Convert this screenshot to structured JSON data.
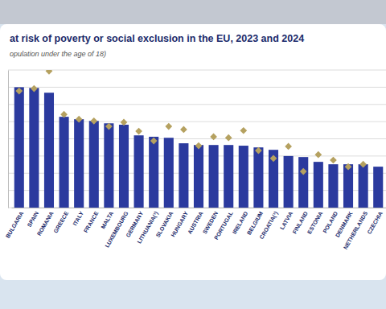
{
  "chart_data": {
    "type": "bar",
    "title": "at risk of poverty or social exclusion in the EU, 2023 and 2024",
    "subtitle": "opulation under the age of 18)",
    "categories": [
      "BULGARIA",
      "SPAIN",
      "ROMANIA",
      "GREECE",
      "ITALY",
      "FRANCE",
      "MALTA",
      "LUXEMBOURG",
      "GERMANY",
      "LITHUANIA(¹)",
      "SLOVAKIA",
      "HUNGARY",
      "AUSTRIA",
      "SWEDEN",
      "PORTUGAL",
      "IRELAND",
      "BELGIUM",
      "CROATIA(¹)",
      "LATVIA",
      "FINLAND",
      "ESTONIA",
      "POLAND",
      "DENMARK",
      "NETHERLANDS",
      "CZECHIA"
    ],
    "series": [
      {
        "type": "bar",
        "color": "#2b3a9e",
        "values": [
          35.0,
          34.8,
          33.4,
          26.4,
          25.7,
          25.2,
          24.5,
          24.1,
          21.0,
          20.6,
          20.3,
          18.7,
          18.2,
          18.2,
          18.2,
          18.0,
          17.5,
          16.8,
          15.0,
          14.7,
          13.3,
          12.6,
          12.6,
          12.6,
          11.9
        ]
      },
      {
        "type": "scatter",
        "marker": "diamond",
        "color": "#b5a160",
        "values": [
          33.9,
          34.6,
          39.7,
          27.1,
          25.7,
          25.2,
          23.6,
          24.8,
          22.2,
          19.4,
          23.6,
          22.7,
          18.0,
          20.6,
          20.3,
          22.4,
          16.6,
          14.3,
          17.8,
          10.5,
          15.4,
          13.8,
          11.9,
          12.6,
          null
        ]
      }
    ],
    "ylim": [
      0,
      40
    ],
    "yticks": [
      0,
      5,
      10,
      15,
      20,
      25,
      30,
      35,
      40
    ],
    "grid": true,
    "tick_labels": "x"
  }
}
